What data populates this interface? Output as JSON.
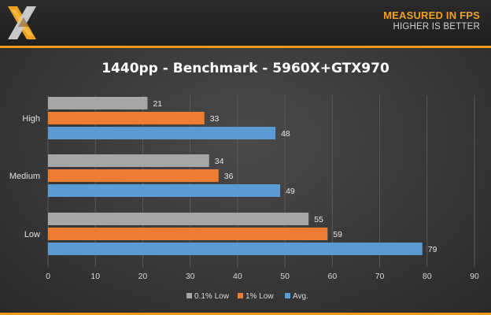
{
  "header": {
    "measured_label": "MEASURED IN FPS",
    "higher_label": "HIGHER IS BETTER"
  },
  "colors": {
    "low01": "#a6a6a6",
    "low1": "#ed7d31",
    "avg": "#5b9bd5",
    "accent": "#f39a1e"
  },
  "chart_data": {
    "type": "bar",
    "orientation": "horizontal",
    "title": "1440pp - Benchmark  - 5960X+GTX970",
    "categories": [
      "High",
      "Medium",
      "Low"
    ],
    "series": [
      {
        "name": "0.1% Low",
        "values": [
          21,
          34,
          55
        ]
      },
      {
        "name": "1% Low",
        "values": [
          33,
          36,
          59
        ]
      },
      {
        "name": "Avg.",
        "values": [
          48,
          49,
          79
        ]
      }
    ],
    "xlim": [
      0,
      90
    ],
    "xticks": [
      0,
      10,
      20,
      30,
      40,
      50,
      60,
      70,
      80,
      90
    ],
    "grid": true,
    "legend_position": "bottom",
    "data_labels": true
  }
}
